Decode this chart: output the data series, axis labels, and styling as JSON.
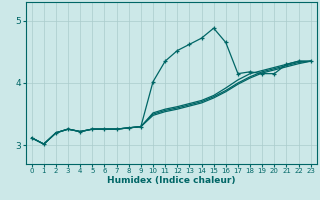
{
  "title": "",
  "xlabel": "Humidex (Indice chaleur)",
  "ylabel": "",
  "bg_color": "#cce8e8",
  "grid_color": "#aacccc",
  "line_color": "#006666",
  "xlim": [
    -0.5,
    23.5
  ],
  "ylim": [
    2.7,
    5.3
  ],
  "yticks": [
    3,
    4,
    5
  ],
  "xticks": [
    0,
    1,
    2,
    3,
    4,
    5,
    6,
    7,
    8,
    9,
    10,
    11,
    12,
    13,
    14,
    15,
    16,
    17,
    18,
    19,
    20,
    21,
    22,
    23
  ],
  "line1_x": [
    0,
    1,
    2,
    3,
    4,
    5,
    6,
    7,
    8,
    9,
    10,
    11,
    12,
    13,
    14,
    15,
    16,
    17,
    18,
    19,
    20,
    21,
    22,
    23
  ],
  "line1_y": [
    3.12,
    3.02,
    3.2,
    3.26,
    3.22,
    3.26,
    3.26,
    3.26,
    3.28,
    3.3,
    4.02,
    4.35,
    4.52,
    4.62,
    4.72,
    4.88,
    4.65,
    4.15,
    4.18,
    4.15,
    4.15,
    4.3,
    4.35,
    4.35
  ],
  "line2_x": [
    0,
    1,
    2,
    3,
    4,
    5,
    6,
    7,
    8,
    9,
    10,
    11,
    12,
    13,
    14,
    15,
    16,
    17,
    18,
    19,
    20,
    21,
    22,
    23
  ],
  "line2_y": [
    3.12,
    3.02,
    3.2,
    3.26,
    3.22,
    3.26,
    3.26,
    3.26,
    3.28,
    3.3,
    3.52,
    3.58,
    3.62,
    3.67,
    3.72,
    3.8,
    3.92,
    4.05,
    4.15,
    4.2,
    4.25,
    4.3,
    4.35,
    4.35
  ],
  "line3_x": [
    0,
    1,
    2,
    3,
    4,
    5,
    6,
    7,
    8,
    9,
    10,
    11,
    12,
    13,
    14,
    15,
    16,
    17,
    18,
    19,
    20,
    21,
    22,
    23
  ],
  "line3_y": [
    3.12,
    3.02,
    3.2,
    3.26,
    3.22,
    3.26,
    3.26,
    3.26,
    3.28,
    3.3,
    3.5,
    3.56,
    3.6,
    3.65,
    3.7,
    3.78,
    3.88,
    4.0,
    4.1,
    4.18,
    4.23,
    4.28,
    4.33,
    4.35
  ],
  "line4_x": [
    0,
    1,
    2,
    3,
    4,
    5,
    6,
    7,
    8,
    9,
    10,
    11,
    12,
    13,
    14,
    15,
    16,
    17,
    18,
    19,
    20,
    21,
    22,
    23
  ],
  "line4_y": [
    3.12,
    3.02,
    3.2,
    3.26,
    3.22,
    3.26,
    3.26,
    3.26,
    3.28,
    3.3,
    3.48,
    3.54,
    3.58,
    3.63,
    3.68,
    3.76,
    3.86,
    3.98,
    4.08,
    4.16,
    4.21,
    4.26,
    4.31,
    4.35
  ]
}
